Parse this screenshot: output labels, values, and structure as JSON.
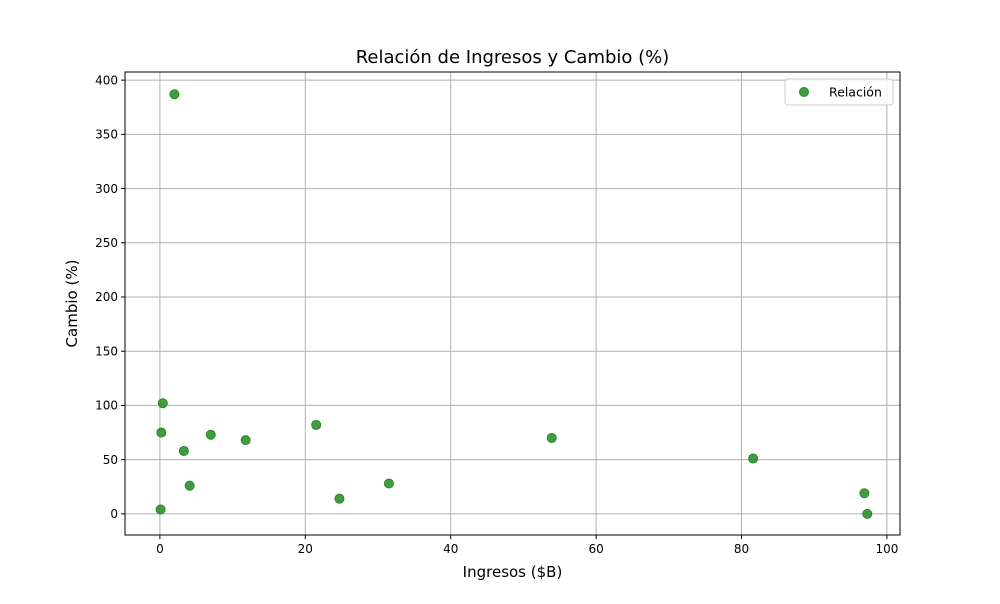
{
  "chart_data": {
    "type": "scatter",
    "title": "Relación de Ingresos y Cambio (%)",
    "xlabel": "Ingresos ($B)",
    "ylabel": "Cambio (%)",
    "xlim": [
      -4.8,
      101.8
    ],
    "ylim": [
      -19.5,
      407.5
    ],
    "xticks": [
      0,
      20,
      40,
      60,
      80,
      100
    ],
    "yticks": [
      0,
      50,
      100,
      150,
      200,
      250,
      300,
      350,
      400
    ],
    "grid": true,
    "legend_position": "top-right",
    "series": [
      {
        "name": "Relación",
        "color": "#228b22",
        "points": [
          {
            "x": 2.0,
            "y": 387
          },
          {
            "x": 0.4,
            "y": 102
          },
          {
            "x": 0.2,
            "y": 75
          },
          {
            "x": 0.1,
            "y": 4
          },
          {
            "x": 3.3,
            "y": 58
          },
          {
            "x": 4.1,
            "y": 26
          },
          {
            "x": 7.0,
            "y": 73
          },
          {
            "x": 11.8,
            "y": 68
          },
          {
            "x": 21.5,
            "y": 82
          },
          {
            "x": 24.7,
            "y": 14
          },
          {
            "x": 31.5,
            "y": 28
          },
          {
            "x": 53.9,
            "y": 70
          },
          {
            "x": 81.6,
            "y": 51
          },
          {
            "x": 96.9,
            "y": 19
          },
          {
            "x": 97.3,
            "y": 0
          }
        ]
      }
    ]
  }
}
